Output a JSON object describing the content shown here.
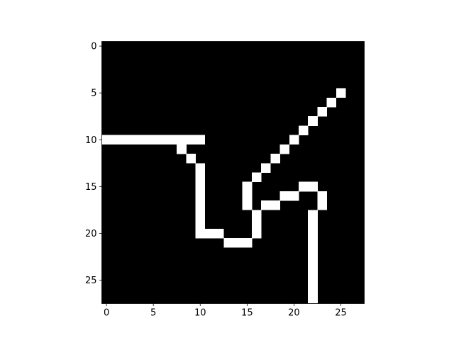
{
  "chart_data": {
    "type": "heatmap",
    "title": "",
    "xlabel": "",
    "ylabel": "",
    "xlim": [
      -0.5,
      27.5
    ],
    "ylim": [
      27.5,
      -0.5
    ],
    "y_inverted": true,
    "grid": false,
    "colormap": "gray",
    "value_range": [
      0,
      1
    ],
    "colors": {
      "background": "#000000",
      "foreground": "#ffffff",
      "axis": "#000000",
      "page": "#ffffff"
    },
    "x_ticks": [
      0,
      5,
      10,
      15,
      20,
      25
    ],
    "y_ticks": [
      0,
      5,
      10,
      15,
      20,
      25
    ],
    "rows": 28,
    "cols": 28,
    "lit_pixels": [
      {
        "row": 5,
        "cols": [
          25
        ]
      },
      {
        "row": 6,
        "cols": [
          24
        ]
      },
      {
        "row": 7,
        "cols": [
          23
        ]
      },
      {
        "row": 8,
        "cols": [
          22
        ]
      },
      {
        "row": 9,
        "cols": [
          21
        ]
      },
      {
        "row": 10,
        "cols": [
          0,
          1,
          2,
          3,
          4,
          5,
          6,
          7,
          8,
          9,
          10,
          20
        ]
      },
      {
        "row": 11,
        "cols": [
          8,
          19
        ]
      },
      {
        "row": 12,
        "cols": [
          9,
          18
        ]
      },
      {
        "row": 13,
        "cols": [
          10,
          17
        ]
      },
      {
        "row": 14,
        "cols": [
          10,
          16
        ]
      },
      {
        "row": 15,
        "cols": [
          10,
          15,
          21,
          22
        ]
      },
      {
        "row": 16,
        "cols": [
          10,
          15,
          19,
          20,
          23
        ]
      },
      {
        "row": 17,
        "cols": [
          10,
          15,
          17,
          18,
          23
        ]
      },
      {
        "row": 18,
        "cols": [
          10,
          16,
          22
        ]
      },
      {
        "row": 19,
        "cols": [
          10,
          16,
          22
        ]
      },
      {
        "row": 20,
        "cols": [
          10,
          11,
          12,
          16,
          22
        ]
      },
      {
        "row": 21,
        "cols": [
          13,
          14,
          15,
          22
        ]
      },
      {
        "row": 22,
        "cols": [
          22
        ]
      },
      {
        "row": 23,
        "cols": [
          22
        ]
      },
      {
        "row": 24,
        "cols": [
          22
        ]
      },
      {
        "row": 25,
        "cols": [
          22
        ]
      },
      {
        "row": 26,
        "cols": [
          22
        ]
      },
      {
        "row": 27,
        "cols": [
          22
        ]
      }
    ]
  }
}
